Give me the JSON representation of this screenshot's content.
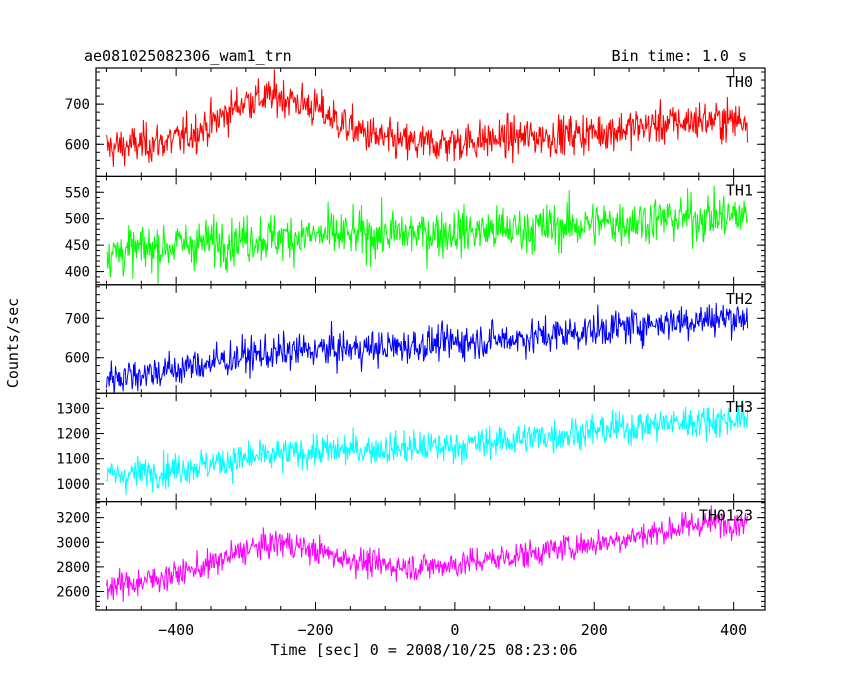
{
  "chart_data": {
    "type": "line",
    "title": "ae081025082306_wam1_trn",
    "bin_time_label": "Bin time: 1.0 s",
    "xlabel": "Time [sec] 0 = 2008/10/25 08:23:06",
    "ylabel": "Counts/sec",
    "xlim": [
      -515,
      445
    ],
    "x_start": -500,
    "x_end": 420,
    "x_ticks": [
      -400,
      -200,
      0,
      200,
      400
    ],
    "panels": [
      {
        "name": "TH0",
        "color": "#ff0000",
        "ylim": [
          520,
          790
        ],
        "yticks": [
          600,
          700
        ],
        "noise": 42,
        "trend_x": [
          -500,
          -450,
          -400,
          -350,
          -300,
          -250,
          -200,
          -150,
          -100,
          -50,
          0,
          50,
          100,
          150,
          200,
          250,
          300,
          350,
          420
        ],
        "trend_y": [
          590,
          600,
          610,
          650,
          710,
          720,
          690,
          640,
          610,
          600,
          605,
          612,
          618,
          622,
          630,
          640,
          650,
          660,
          660
        ]
      },
      {
        "name": "TH1",
        "color": "#00ff00",
        "ylim": [
          375,
          580
        ],
        "yticks": [
          400,
          450,
          500,
          550
        ],
        "noise": 38,
        "trend_x": [
          -500,
          -400,
          -300,
          -200,
          -100,
          0,
          100,
          200,
          300,
          420
        ],
        "trend_y": [
          435,
          450,
          462,
          468,
          470,
          475,
          480,
          490,
          500,
          505
        ]
      },
      {
        "name": "TH2",
        "color": "#0000ff",
        "ylim": [
          510,
          785
        ],
        "yticks": [
          600,
          700
        ],
        "noise": 38,
        "trend_x": [
          -500,
          -400,
          -300,
          -200,
          -100,
          0,
          100,
          200,
          300,
          420
        ],
        "trend_y": [
          550,
          570,
          605,
          620,
          625,
          640,
          650,
          670,
          690,
          705
        ]
      },
      {
        "name": "TH3",
        "color": "#00ffff",
        "ylim": [
          930,
          1360
        ],
        "yticks": [
          1000,
          1100,
          1200,
          1300
        ],
        "noise": 55,
        "trend_x": [
          -500,
          -400,
          -300,
          -200,
          -100,
          0,
          100,
          200,
          300,
          420
        ],
        "trend_y": [
          1030,
          1060,
          1100,
          1130,
          1140,
          1150,
          1180,
          1210,
          1240,
          1260
        ]
      },
      {
        "name": "TH0123",
        "color": "#ff00ff",
        "ylim": [
          2450,
          3330
        ],
        "yticks": [
          2600,
          2800,
          3000,
          3200
        ],
        "noise": 95,
        "trend_x": [
          -500,
          -450,
          -400,
          -350,
          -300,
          -250,
          -200,
          -150,
          -100,
          -50,
          0,
          50,
          100,
          150,
          200,
          250,
          300,
          350,
          420
        ],
        "trend_y": [
          2640,
          2680,
          2740,
          2820,
          2940,
          3000,
          2930,
          2860,
          2810,
          2800,
          2820,
          2860,
          2900,
          2950,
          2990,
          3040,
          3090,
          3150,
          3170
        ]
      }
    ]
  }
}
